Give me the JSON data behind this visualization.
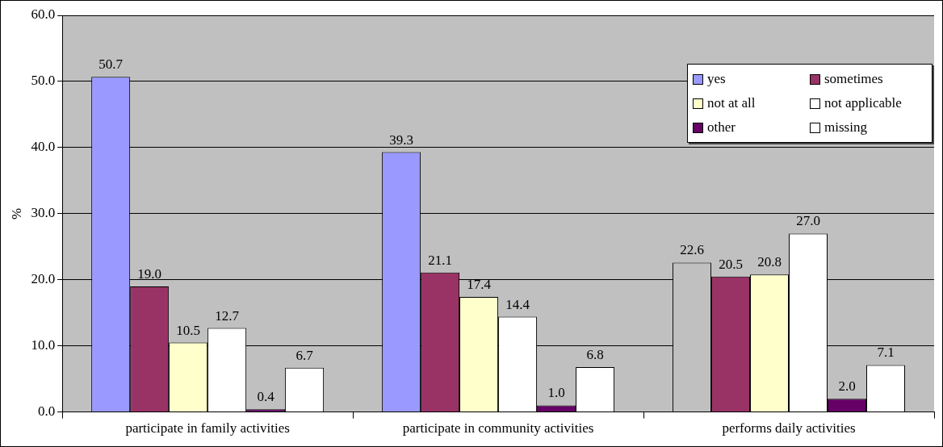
{
  "chart_data": {
    "type": "bar",
    "ylabel": "%",
    "categories": [
      "participate in family activities",
      "participate in community activities",
      "performs daily activities"
    ],
    "series": [
      {
        "name": "yes",
        "colors": [
          "#9999ff",
          "#9999ff",
          "#c0c0c0"
        ],
        "values": [
          50.7,
          39.3,
          22.6
        ],
        "value_labels": [
          "50.7",
          "39.3",
          "22.6"
        ]
      },
      {
        "name": "sometimes",
        "color": "#993366",
        "values": [
          19.0,
          21.1,
          20.5
        ],
        "value_labels": [
          "19.0",
          "21.1",
          "20.5"
        ]
      },
      {
        "name": "not at all",
        "color": "#ffffcc",
        "values": [
          10.5,
          17.4,
          20.8
        ],
        "value_labels": [
          "10.5",
          "17.4",
          "20.8"
        ]
      },
      {
        "name": "not applicable",
        "color": "#ffffff",
        "values": [
          12.7,
          14.4,
          27.0
        ],
        "value_labels": [
          "12.7",
          "14.4",
          "27.0"
        ]
      },
      {
        "name": "other",
        "color": "#660066",
        "values": [
          0.4,
          1.0,
          2.0
        ],
        "value_labels": [
          "0.4",
          "1.0",
          "2.0"
        ]
      },
      {
        "name": "missing",
        "color": "#ffffff",
        "values": [
          6.7,
          6.8,
          7.1
        ],
        "value_labels": [
          "6.7",
          "6.8",
          "7.1"
        ]
      }
    ],
    "ylim": [
      0,
      60
    ],
    "yticks": [
      {
        "value": 0,
        "label": "0.0"
      },
      {
        "value": 10,
        "label": "10.0"
      },
      {
        "value": 20,
        "label": "20.0"
      },
      {
        "value": 30,
        "label": "30.0"
      },
      {
        "value": 40,
        "label": "40.0"
      },
      {
        "value": 50,
        "label": "50.0"
      },
      {
        "value": 60,
        "label": "60.0"
      }
    ],
    "grid": "y",
    "legend": "top right"
  }
}
